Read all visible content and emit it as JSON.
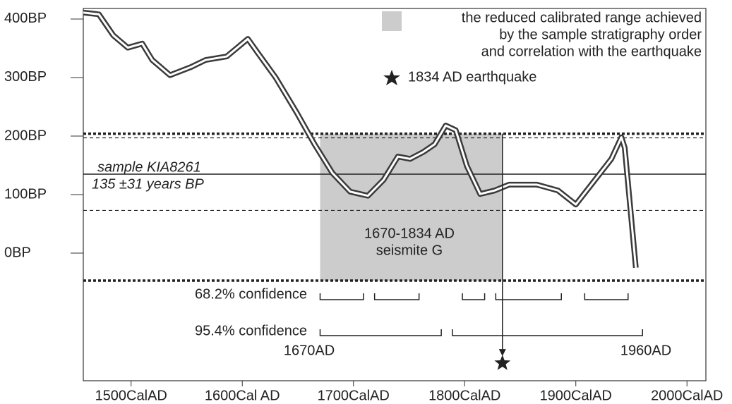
{
  "chart_data": {
    "type": "line",
    "x": [
      1457,
      1471,
      1484,
      1497,
      1510,
      1519,
      1535,
      1554,
      1567,
      1586,
      1605,
      1614,
      1630,
      1649,
      1665,
      1681,
      1697,
      1713,
      1727,
      1740,
      1751,
      1763,
      1773,
      1783,
      1792,
      1802,
      1814,
      1827,
      1840,
      1865,
      1884,
      1900,
      1916,
      1932,
      1941,
      1944,
      1954
    ],
    "values": [
      411,
      408,
      372,
      351,
      358,
      330,
      304,
      318,
      330,
      336,
      366,
      342,
      300,
      240,
      186,
      137,
      105,
      98,
      125,
      165,
      161,
      173,
      186,
      218,
      210,
      149,
      101,
      107,
      117,
      117,
      107,
      83,
      122,
      161,
      198,
      180,
      -25
    ],
    "color": "#3a3a3a",
    "xlim": [
      1457,
      2017
    ],
    "ylim": [
      -218,
      418
    ],
    "xticks": [
      {
        "value": 1500,
        "label": "1500CalAD"
      },
      {
        "value": 1600,
        "label": "1600Cal AD"
      },
      {
        "value": 1700,
        "label": "1700CalAD"
      },
      {
        "value": 1800,
        "label": "1800CalAD"
      },
      {
        "value": 1900,
        "label": "1900CalAD"
      },
      {
        "value": 2000,
        "label": "2000CalAD"
      }
    ],
    "yticks": [
      {
        "value": 0,
        "label": "0BP"
      },
      {
        "value": 100,
        "label": "100BP"
      },
      {
        "value": 200,
        "label": "200BP"
      },
      {
        "value": 300,
        "label": "300BP"
      },
      {
        "value": 400,
        "label": "400BP"
      }
    ],
    "sample": {
      "label": [
        "sample KIA8261",
        "135 ±31 years BP"
      ],
      "value": 135
    },
    "sigma2_lines": [
      197,
      73
    ],
    "range_lines": [
      204,
      -47
    ],
    "reduced_range": {
      "legend": [
        "the reduced calibrated range achieved",
        "by the sample stratigraphy order",
        "and correlation with the earthquake"
      ],
      "label": [
        "1670-1834 AD",
        "seismite G"
      ],
      "start": 1670,
      "end": 1834,
      "color": "#cccccc"
    },
    "earthquake": {
      "legend": "1834 AD earthquake",
      "year": 1834,
      "marker_value": -188
    },
    "confidence_68": {
      "label": "68.2% confidence",
      "ranges": [
        [
          1670,
          1709
        ],
        [
          1719,
          1759
        ],
        [
          1798,
          1818
        ],
        [
          1828,
          1887
        ],
        [
          1908,
          1947
        ]
      ]
    },
    "confidence_95": {
      "label": "95.4% confidence",
      "ranges": [
        [
          1670,
          1779
        ],
        [
          1789,
          1960
        ]
      ],
      "start_label": "1670AD",
      "end_label": "1960AD"
    }
  }
}
